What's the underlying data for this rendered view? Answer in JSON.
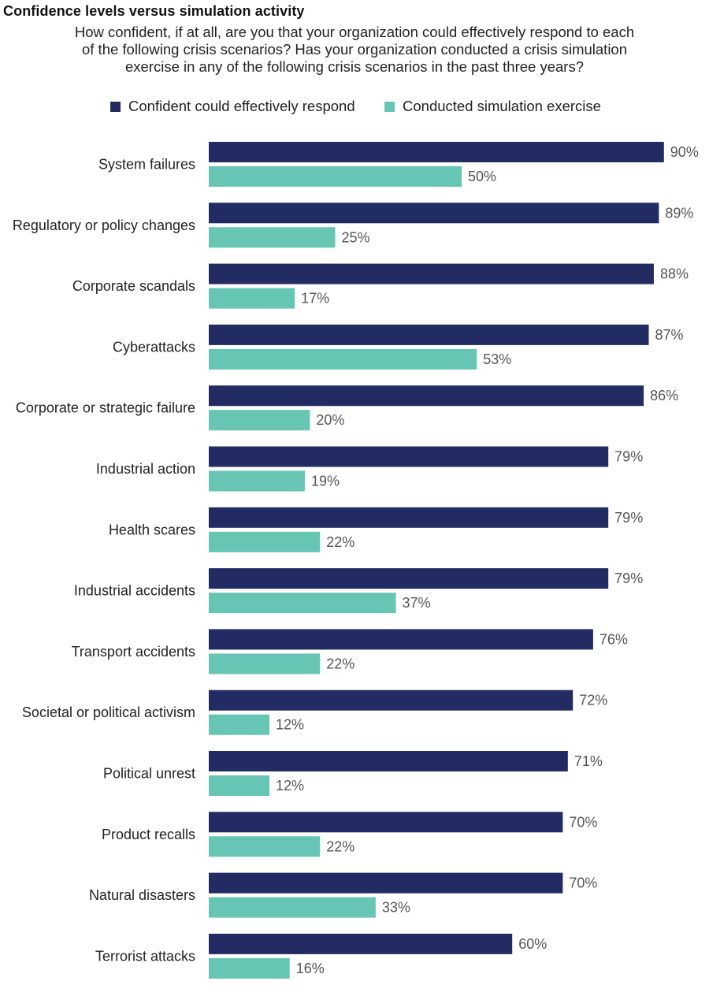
{
  "chart_data": {
    "type": "bar",
    "orientation": "horizontal",
    "title": "Confidence levels versus simulation activity",
    "subtitle": "How confident, if at all, are you that your organization could effectively respond to each of the following crisis scenarios? Has your organization conducted a crisis simulation exercise in any of the following crisis scenarios in the past three years?",
    "subtitle_lines": [
      "How confident, if at all, are you that your organization could effectively respond to each",
      "of the following crisis scenarios? Has your organization conducted a crisis simulation",
      "exercise in any of the following crisis scenarios in the past three years?"
    ],
    "categories": [
      "System failures",
      "Regulatory or policy changes",
      "Corporate scandals",
      "Cyberattacks",
      "Corporate or strategic failure",
      "Industrial action",
      "Health scares",
      "Industrial accidents",
      "Transport accidents",
      "Societal or political activism",
      "Political unrest",
      "Product recalls",
      "Natural disasters",
      "Terrorist attacks"
    ],
    "series": [
      {
        "name": "Confident could effectively respond",
        "color": "#232b63",
        "values": [
          90,
          89,
          88,
          87,
          86,
          79,
          79,
          79,
          76,
          72,
          71,
          70,
          70,
          60
        ]
      },
      {
        "name": "Conducted simulation exercise",
        "color": "#66c6b3",
        "values": [
          50,
          25,
          17,
          53,
          20,
          19,
          22,
          37,
          22,
          12,
          12,
          22,
          33,
          16
        ]
      }
    ],
    "value_suffix": "%",
    "legend_position": "top",
    "grid": false,
    "xlim": [
      0,
      100
    ]
  }
}
